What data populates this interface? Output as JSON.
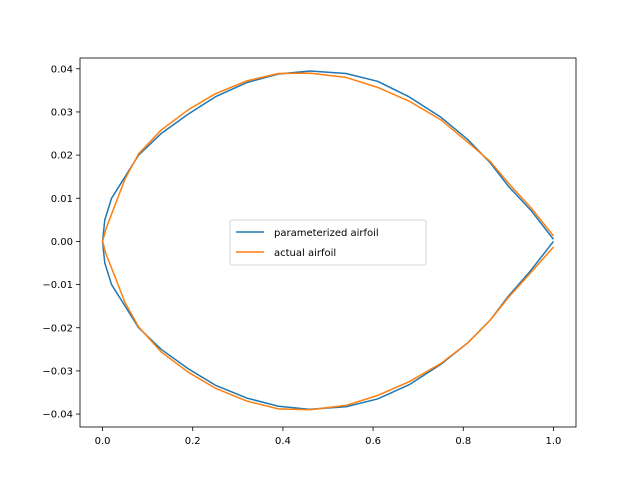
{
  "chart_data": {
    "type": "line",
    "title": "",
    "xlabel": "",
    "ylabel": "",
    "xlim": [
      -0.05,
      1.05
    ],
    "ylim": [
      -0.043,
      0.0425
    ],
    "x_ticks": [
      0.0,
      0.2,
      0.4,
      0.6,
      0.8,
      1.0
    ],
    "x_tick_labels": [
      "0.0",
      "0.2",
      "0.4",
      "0.6",
      "0.8",
      "1.0"
    ],
    "y_ticks": [
      -0.04,
      -0.03,
      -0.02,
      -0.01,
      0.0,
      0.01,
      0.02,
      0.03,
      0.04
    ],
    "y_tick_labels": [
      "−0.04",
      "−0.03",
      "−0.02",
      "−0.01",
      "0.00",
      "0.01",
      "0.02",
      "0.03",
      "0.04"
    ],
    "grid": false,
    "legend_position": "center",
    "series": [
      {
        "name": "parameterized airfoil",
        "color": "#1f77b4",
        "x": [
          1.0,
          0.95,
          0.9,
          0.86,
          0.81,
          0.75,
          0.68,
          0.61,
          0.54,
          0.46,
          0.39,
          0.32,
          0.25,
          0.19,
          0.13,
          0.08,
          0.05,
          0.02,
          0.005,
          0.0,
          0.005,
          0.02,
          0.05,
          0.08,
          0.13,
          0.19,
          0.25,
          0.32,
          0.39,
          0.46,
          0.54,
          0.61,
          0.68,
          0.75,
          0.81,
          0.86,
          0.9,
          0.95,
          1.0
        ],
        "y": [
          0.0005,
          0.0072,
          0.0128,
          0.0182,
          0.0236,
          0.0288,
          0.0335,
          0.0371,
          0.0389,
          0.0395,
          0.0388,
          0.0368,
          0.0335,
          0.0295,
          0.025,
          0.02,
          0.015,
          0.01,
          0.005,
          0.0,
          -0.005,
          -0.01,
          -0.015,
          -0.02,
          -0.025,
          -0.0295,
          -0.0333,
          -0.0363,
          -0.0382,
          -0.0389,
          -0.0383,
          -0.0365,
          -0.0332,
          -0.0285,
          -0.0235,
          -0.0182,
          -0.0127,
          -0.0067,
          0.0
        ]
      },
      {
        "name": "actual airfoil",
        "color": "#ff7f0e",
        "x": [
          1.0,
          0.95,
          0.9,
          0.86,
          0.81,
          0.75,
          0.68,
          0.61,
          0.54,
          0.46,
          0.39,
          0.32,
          0.25,
          0.19,
          0.13,
          0.08,
          0.05,
          0.025,
          0.008,
          0.0,
          0.008,
          0.025,
          0.05,
          0.08,
          0.13,
          0.19,
          0.25,
          0.32,
          0.39,
          0.46,
          0.54,
          0.61,
          0.68,
          0.75,
          0.81,
          0.86,
          0.9,
          0.95,
          1.0
        ],
        "y": [
          0.0013,
          0.0078,
          0.0135,
          0.0185,
          0.023,
          0.0282,
          0.0325,
          0.0357,
          0.038,
          0.039,
          0.0389,
          0.0372,
          0.0342,
          0.0305,
          0.0258,
          0.0203,
          0.0145,
          0.0077,
          0.003,
          0.0,
          -0.003,
          -0.0075,
          -0.0142,
          -0.0198,
          -0.0256,
          -0.0303,
          -0.034,
          -0.037,
          -0.0388,
          -0.039,
          -0.038,
          -0.0357,
          -0.0325,
          -0.0283,
          -0.0235,
          -0.0182,
          -0.013,
          -0.0072,
          -0.0013
        ]
      }
    ]
  }
}
